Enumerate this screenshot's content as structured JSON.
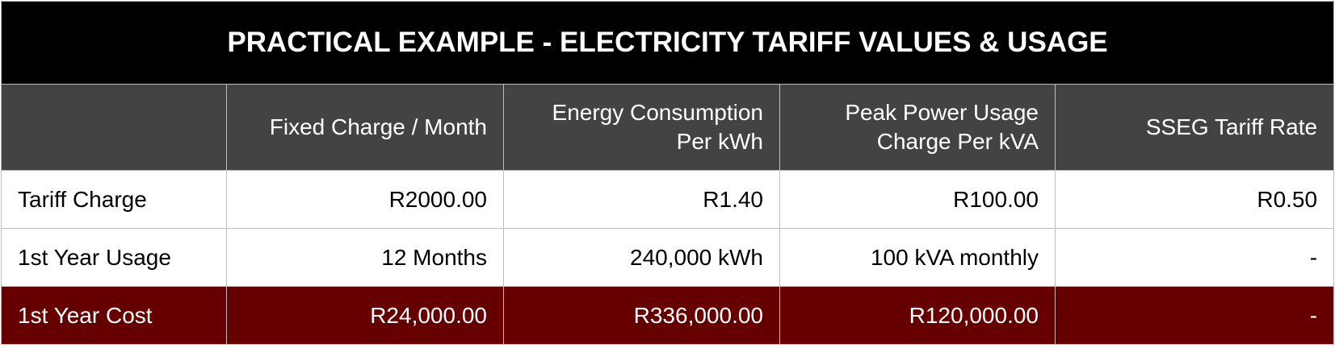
{
  "title": "PRACTICAL EXAMPLE - ELECTRICITY TARIFF VALUES & USAGE",
  "table": {
    "headers": [
      "Fixed Charge / Month",
      "Energy Consumption Per kWh",
      "Peak Power Usage Charge Per kVA",
      "SSEG Tariff Rate"
    ],
    "rows": [
      [
        "Tariff Charge",
        "R2000.00",
        "R1.40",
        "R100.00",
        "R0.50"
      ],
      [
        "1st Year Usage",
        "12 Months",
        "240,000 kWh",
        "100 kVA monthly",
        "-"
      ],
      [
        "1st Year Cost",
        "R24,000.00",
        "R336,000.00",
        "R120,000.00",
        "-"
      ]
    ]
  }
}
